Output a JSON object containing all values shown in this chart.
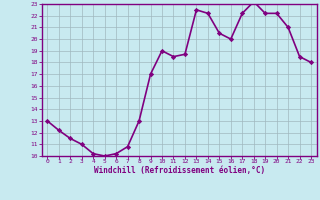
{
  "x": [
    0,
    1,
    2,
    3,
    4,
    5,
    6,
    7,
    8,
    9,
    10,
    11,
    12,
    13,
    14,
    15,
    16,
    17,
    18,
    19,
    20,
    21,
    22,
    23
  ],
  "y": [
    13.0,
    12.2,
    11.5,
    11.0,
    10.2,
    10.0,
    10.2,
    10.8,
    13.0,
    17.0,
    19.0,
    18.5,
    18.7,
    22.5,
    22.2,
    20.5,
    20.0,
    22.2,
    23.2,
    22.2,
    22.2,
    21.0,
    18.5,
    18.0
  ],
  "line_color": "#800080",
  "marker": "D",
  "marker_size": 2.2,
  "bg_color": "#c8eaf0",
  "grid_color": "#a0b8bf",
  "xlabel": "Windchill (Refroidissement éolien,°C)",
  "xlabel_color": "#800080",
  "xlim": [
    -0.5,
    23.5
  ],
  "ylim": [
    10,
    23
  ],
  "yticks": [
    10,
    11,
    12,
    13,
    14,
    15,
    16,
    17,
    18,
    19,
    20,
    21,
    22,
    23
  ],
  "xticks": [
    0,
    1,
    2,
    3,
    4,
    5,
    6,
    7,
    8,
    9,
    10,
    11,
    12,
    13,
    14,
    15,
    16,
    17,
    18,
    19,
    20,
    21,
    22,
    23
  ],
  "tick_color": "#800080",
  "spine_color": "#800080",
  "linewidth": 1.2
}
